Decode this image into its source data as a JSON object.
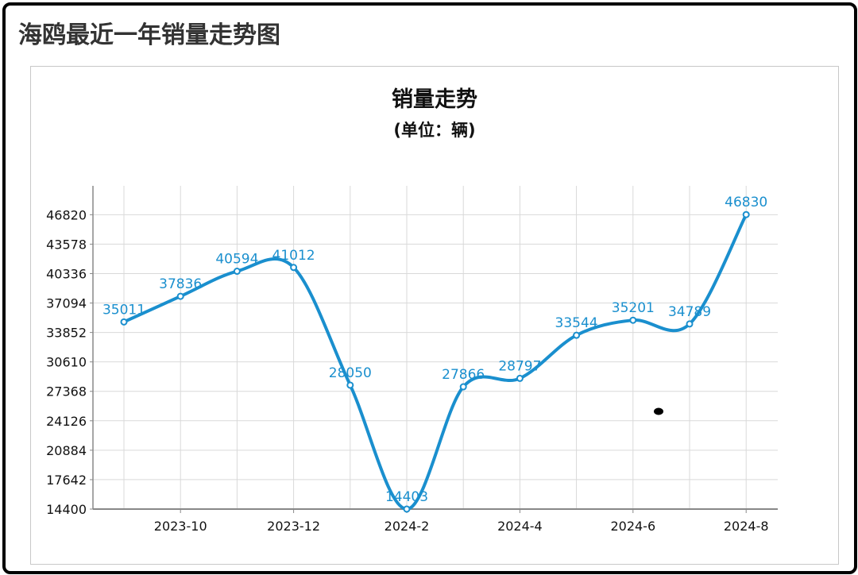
{
  "page": {
    "title": "海鸥最近一年销量走势图"
  },
  "colors": {
    "line": "#1a8fce",
    "grid": "#d9d9d9",
    "axis": "#888888",
    "text": "#111111"
  },
  "chart_data": {
    "type": "line",
    "title": "销量走势",
    "subtitle": "(单位：辆)",
    "xlabel": "",
    "ylabel": "",
    "x": [
      "2023-09",
      "2023-10",
      "2023-11",
      "2023-12",
      "2024-01",
      "2024-02",
      "2024-03",
      "2024-04",
      "2024-05",
      "2024-06",
      "2024-07",
      "2024-08"
    ],
    "x_tick_labels": [
      "2023-10",
      "2023-12",
      "2024-2",
      "2024-4",
      "2024-6",
      "2024-8"
    ],
    "y_ticks": [
      14400,
      17642,
      20884,
      24126,
      27368,
      30610,
      33852,
      37094,
      40336,
      43578,
      46820
    ],
    "ylim": [
      14400,
      50000
    ],
    "grid": true,
    "legend": "none",
    "series": [
      {
        "values": [
          35011,
          37836,
          40594,
          41012,
          28050,
          14403,
          27866,
          28797,
          33544,
          35201,
          34789,
          46830
        ]
      }
    ]
  }
}
